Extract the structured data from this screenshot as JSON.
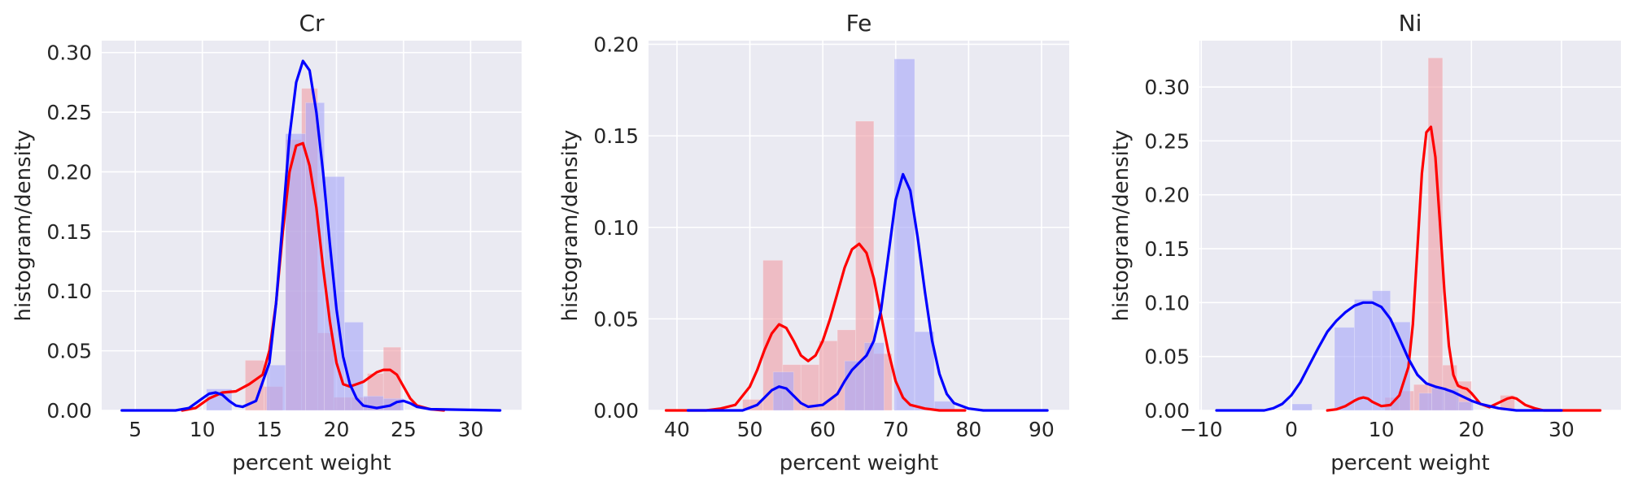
{
  "colors": {
    "background": "#eaeaf2",
    "grid": "#ffffff",
    "red": "#ff0000",
    "blue": "#0000ff",
    "red_fill": "#f0a0a8",
    "blue_fill": "#a8a8f8"
  },
  "chart_data": [
    {
      "type": "bar",
      "title": "Cr",
      "xlabel": "percent weight",
      "ylabel": "histogram/density",
      "xlim": [
        2.5,
        33.8
      ],
      "ylim": [
        0,
        0.31
      ],
      "xticks": [
        5,
        10,
        15,
        20,
        25,
        30
      ],
      "yticks": [
        0.0,
        0.05,
        0.1,
        0.15,
        0.2,
        0.25,
        0.3
      ],
      "ytick_labels": [
        "0.00",
        "0.05",
        "0.10",
        "0.15",
        "0.20",
        "0.25",
        "0.30"
      ],
      "grid": true,
      "series": [
        {
          "color": "red",
          "histogram": [
            {
              "x0": 13.2,
              "x1": 14.6,
              "y": 0.042
            },
            {
              "x0": 14.6,
              "x1": 16.0,
              "y": 0.02
            },
            {
              "x0": 16.2,
              "x1": 17.4,
              "y": 0.227
            },
            {
              "x0": 17.4,
              "x1": 18.6,
              "y": 0.27
            },
            {
              "x0": 18.6,
              "x1": 19.8,
              "y": 0.065
            },
            {
              "x0": 19.8,
              "x1": 21.1,
              "y": 0.011
            },
            {
              "x0": 21.1,
              "x1": 22.3,
              "y": 0.011
            },
            {
              "x0": 22.3,
              "x1": 23.5,
              "y": 0.031
            },
            {
              "x0": 23.5,
              "x1": 24.8,
              "y": 0.053
            }
          ],
          "density": {
            "x": [
              8.5,
              9.5,
              10.5,
              11.5,
              12.5,
              13.5,
              14.5,
              15.0,
              15.5,
              16.0,
              16.5,
              17.0,
              17.5,
              18.0,
              18.5,
              19.0,
              19.5,
              20.0,
              20.5,
              21.0,
              21.5,
              22.0,
              22.5,
              23.0,
              23.5,
              24.0,
              24.5,
              25.0,
              25.5,
              26.0,
              27.0,
              28.0
            ],
            "y": [
              0.0,
              0.002,
              0.01,
              0.015,
              0.016,
              0.022,
              0.03,
              0.05,
              0.09,
              0.15,
              0.2,
              0.222,
              0.224,
              0.205,
              0.17,
              0.12,
              0.075,
              0.04,
              0.022,
              0.02,
              0.022,
              0.024,
              0.028,
              0.032,
              0.034,
              0.034,
              0.03,
              0.02,
              0.01,
              0.004,
              0.001,
              0.0
            ]
          }
        },
        {
          "color": "blue",
          "histogram": [
            {
              "x0": 10.3,
              "x1": 12.2,
              "y": 0.018
            },
            {
              "x0": 14.8,
              "x1": 16.2,
              "y": 0.038
            },
            {
              "x0": 16.2,
              "x1": 17.7,
              "y": 0.232
            },
            {
              "x0": 17.7,
              "x1": 19.1,
              "y": 0.258
            },
            {
              "x0": 19.1,
              "x1": 20.6,
              "y": 0.196
            },
            {
              "x0": 20.6,
              "x1": 22.0,
              "y": 0.074
            },
            {
              "x0": 22.0,
              "x1": 23.5,
              "y": 0.012
            },
            {
              "x0": 23.5,
              "x1": 25.0,
              "y": 0.01
            }
          ],
          "density": {
            "x": [
              4.0,
              8.0,
              9.0,
              10.0,
              10.5,
              11.0,
              11.5,
              12.0,
              12.5,
              13.0,
              14.0,
              15.0,
              15.5,
              16.0,
              16.5,
              17.0,
              17.5,
              18.0,
              18.5,
              19.0,
              19.5,
              20.0,
              20.5,
              21.0,
              21.5,
              22.0,
              23.0,
              24.0,
              24.5,
              25.0,
              25.5,
              26.0,
              27.0,
              32.2
            ],
            "y": [
              0.0,
              0.0,
              0.002,
              0.01,
              0.014,
              0.015,
              0.013,
              0.008,
              0.004,
              0.003,
              0.008,
              0.04,
              0.09,
              0.16,
              0.23,
              0.275,
              0.293,
              0.285,
              0.25,
              0.2,
              0.14,
              0.085,
              0.045,
              0.022,
              0.01,
              0.004,
              0.002,
              0.004,
              0.007,
              0.008,
              0.006,
              0.003,
              0.001,
              0.0
            ]
          }
        }
      ]
    },
    {
      "type": "bar",
      "title": "Fe",
      "xlabel": "percent weight",
      "ylabel": "histogram/density",
      "xlim": [
        36.1,
        93.8
      ],
      "ylim": [
        0,
        0.202
      ],
      "xticks": [
        40,
        50,
        60,
        70,
        80,
        90
      ],
      "yticks": [
        0.0,
        0.05,
        0.1,
        0.15,
        0.2
      ],
      "ytick_labels": [
        "0.00",
        "0.05",
        "0.10",
        "0.15",
        "0.20"
      ],
      "grid": true,
      "series": [
        {
          "color": "red",
          "histogram": [
            {
              "x0": 49.0,
              "x1": 51.8,
              "y": 0.006
            },
            {
              "x0": 51.8,
              "x1": 54.5,
              "y": 0.082
            },
            {
              "x0": 54.5,
              "x1": 57.0,
              "y": 0.025
            },
            {
              "x0": 57.0,
              "x1": 59.5,
              "y": 0.025
            },
            {
              "x0": 59.5,
              "x1": 62.0,
              "y": 0.038
            },
            {
              "x0": 62.0,
              "x1": 64.5,
              "y": 0.044
            },
            {
              "x0": 64.5,
              "x1": 67.0,
              "y": 0.158
            },
            {
              "x0": 67.0,
              "x1": 69.5,
              "y": 0.031
            }
          ],
          "density": {
            "x": [
              38.5,
              44.0,
              46.0,
              48.0,
              50.0,
              51.0,
              52.0,
              53.0,
              54.0,
              55.0,
              56.0,
              57.0,
              58.0,
              59.0,
              60.0,
              61.0,
              62.0,
              63.0,
              64.0,
              65.0,
              66.0,
              67.0,
              68.0,
              69.0,
              70.0,
              71.0,
              72.0,
              74.0,
              76.0,
              79.5
            ],
            "y": [
              0.0,
              0.0,
              0.001,
              0.003,
              0.013,
              0.022,
              0.033,
              0.042,
              0.047,
              0.045,
              0.038,
              0.03,
              0.027,
              0.03,
              0.038,
              0.05,
              0.064,
              0.078,
              0.088,
              0.091,
              0.086,
              0.072,
              0.052,
              0.032,
              0.016,
              0.007,
              0.003,
              0.001,
              0.0,
              0.0
            ]
          }
        },
        {
          "color": "blue",
          "histogram": [
            {
              "x0": 53.2,
              "x1": 56.0,
              "y": 0.021
            },
            {
              "x0": 63.0,
              "x1": 65.7,
              "y": 0.027
            },
            {
              "x0": 65.7,
              "x1": 68.4,
              "y": 0.037
            },
            {
              "x0": 69.8,
              "x1": 72.6,
              "y": 0.192
            },
            {
              "x0": 72.6,
              "x1": 75.3,
              "y": 0.043
            },
            {
              "x0": 75.3,
              "x1": 78.1,
              "y": 0.005
            }
          ],
          "density": {
            "x": [
              41.5,
              49.0,
              51.0,
              52.0,
              53.0,
              54.0,
              55.0,
              56.0,
              57.0,
              58.0,
              60.0,
              62.0,
              63.0,
              64.0,
              65.0,
              66.0,
              67.0,
              68.0,
              69.0,
              70.0,
              71.0,
              72.0,
              73.0,
              74.0,
              75.0,
              76.0,
              77.0,
              78.0,
              80.0,
              82.0,
              90.8
            ],
            "y": [
              0.0,
              0.0,
              0.003,
              0.007,
              0.011,
              0.013,
              0.012,
              0.008,
              0.004,
              0.002,
              0.003,
              0.009,
              0.016,
              0.022,
              0.026,
              0.03,
              0.038,
              0.055,
              0.085,
              0.115,
              0.129,
              0.12,
              0.095,
              0.065,
              0.038,
              0.02,
              0.009,
              0.004,
              0.001,
              0.0,
              0.0
            ]
          }
        }
      ]
    },
    {
      "type": "bar",
      "title": "Ni",
      "xlabel": "percent weight",
      "ylabel": "histogram/density",
      "xlim": [
        -10.2,
        36.6
      ],
      "ylim": [
        0,
        0.343
      ],
      "xticks": [
        -10,
        0,
        10,
        20,
        30
      ],
      "yticks": [
        0.0,
        0.05,
        0.1,
        0.15,
        0.2,
        0.25,
        0.3
      ],
      "ytick_labels": [
        "0.00",
        "0.05",
        "0.10",
        "0.15",
        "0.20",
        "0.25",
        "0.30"
      ],
      "xtick_labels": [
        "−10",
        "0",
        "10",
        "20",
        "30"
      ],
      "grid": true,
      "series": [
        {
          "color": "red",
          "histogram": [
            {
              "x0": 10.4,
              "x1": 12.0,
              "y": 0.012
            },
            {
              "x0": 12.0,
              "x1": 13.6,
              "y": 0.018
            },
            {
              "x0": 13.6,
              "x1": 15.2,
              "y": 0.024
            },
            {
              "x0": 15.2,
              "x1": 16.8,
              "y": 0.327
            },
            {
              "x0": 16.8,
              "x1": 18.4,
              "y": 0.042
            },
            {
              "x0": 18.4,
              "x1": 20.0,
              "y": 0.027
            },
            {
              "x0": 23.2,
              "x1": 24.8,
              "y": 0.014
            }
          ],
          "density": {
            "x": [
              4.0,
              5.0,
              6.0,
              7.0,
              7.5,
              8.0,
              8.5,
              9.0,
              10.0,
              11.0,
              12.0,
              13.0,
              13.5,
              14.0,
              14.5,
              15.0,
              15.5,
              16.0,
              16.5,
              17.0,
              17.5,
              18.0,
              18.5,
              19.0,
              19.5,
              20.0,
              20.5,
              21.0,
              22.0,
              23.0,
              24.0,
              24.5,
              25.0,
              26.0,
              27.0,
              28.0,
              34.3
            ],
            "y": [
              0.0,
              0.001,
              0.004,
              0.009,
              0.011,
              0.012,
              0.011,
              0.008,
              0.004,
              0.005,
              0.014,
              0.04,
              0.08,
              0.15,
              0.22,
              0.258,
              0.263,
              0.235,
              0.175,
              0.11,
              0.06,
              0.033,
              0.023,
              0.021,
              0.02,
              0.016,
              0.011,
              0.006,
              0.003,
              0.007,
              0.011,
              0.012,
              0.011,
              0.005,
              0.002,
              0.0,
              0.0
            ]
          }
        },
        {
          "color": "blue",
          "histogram": [
            {
              "x0": 0.1,
              "x1": 2.3,
              "y": 0.006
            },
            {
              "x0": 4.8,
              "x1": 7.0,
              "y": 0.077
            },
            {
              "x0": 7.0,
              "x1": 9.0,
              "y": 0.103
            },
            {
              "x0": 9.0,
              "x1": 11.0,
              "y": 0.111
            },
            {
              "x0": 11.0,
              "x1": 13.2,
              "y": 0.082
            },
            {
              "x0": 14.2,
              "x1": 15.6,
              "y": 0.016
            },
            {
              "x0": 15.6,
              "x1": 17.0,
              "y": 0.021
            },
            {
              "x0": 17.0,
              "x1": 18.6,
              "y": 0.02
            },
            {
              "x0": 18.6,
              "x1": 20.2,
              "y": 0.008
            }
          ],
          "density": {
            "x": [
              -8.3,
              -3.0,
              -2.0,
              -1.0,
              0.0,
              1.0,
              2.0,
              3.0,
              4.0,
              5.0,
              6.0,
              7.0,
              8.0,
              9.0,
              10.0,
              11.0,
              12.0,
              13.0,
              14.0,
              15.0,
              16.0,
              17.0,
              18.0,
              19.0,
              20.0,
              21.0,
              22.0,
              23.0,
              24.0,
              25.0,
              27.0,
              30.0
            ],
            "y": [
              0.0,
              0.0,
              0.002,
              0.006,
              0.014,
              0.026,
              0.042,
              0.058,
              0.073,
              0.083,
              0.091,
              0.097,
              0.1,
              0.1,
              0.096,
              0.085,
              0.067,
              0.048,
              0.033,
              0.025,
              0.022,
              0.02,
              0.017,
              0.013,
              0.009,
              0.006,
              0.004,
              0.002,
              0.001,
              0.0,
              0.0,
              0.0
            ]
          }
        }
      ]
    }
  ]
}
